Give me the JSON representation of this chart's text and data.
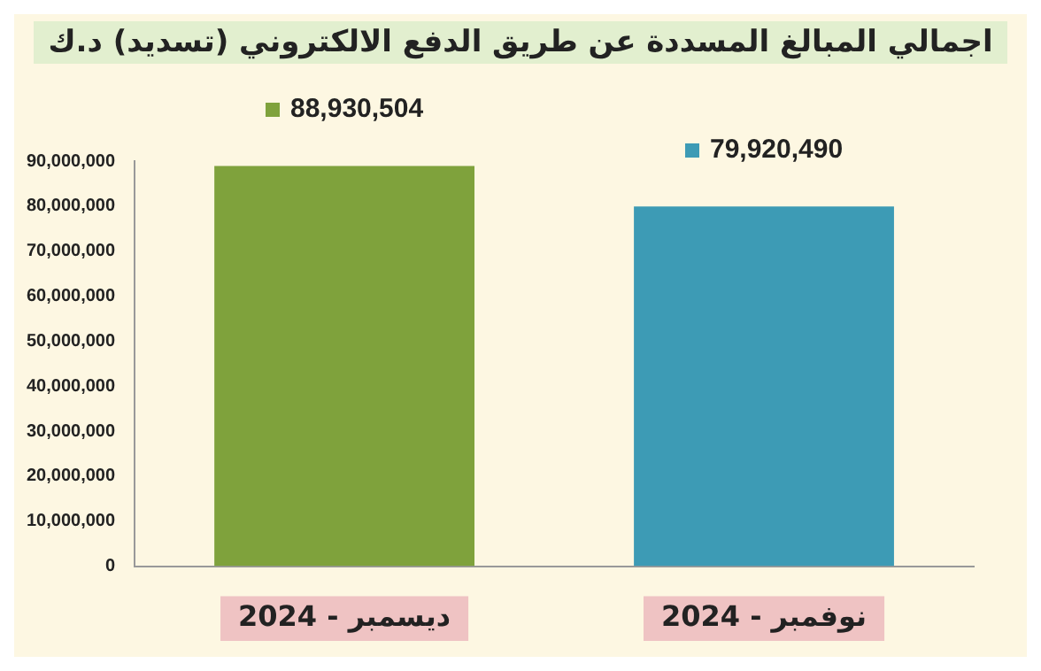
{
  "chart_data": {
    "type": "bar",
    "title": "اجمالي المبالغ المسددة عن طريق الدفع الالكتروني (تسديد) د.ك",
    "categories": [
      "ديسمبر - 2024",
      "نوفمبر - 2024"
    ],
    "values": [
      88930504,
      79920490
    ],
    "colors": [
      "#7fa23c",
      "#3d9bb5"
    ],
    "value_labels": [
      "88,930,504",
      "79,920,490"
    ],
    "ylim": [
      0,
      90000000
    ],
    "yticks": [
      0,
      {
        "value": 10000000,
        "label": "10,000,000"
      },
      {
        "value": 20000000,
        "label": "20,000,000"
      },
      {
        "value": 30000000,
        "label": "30,000,000"
      },
      {
        "value": 40000000,
        "label": "40,000,000"
      },
      {
        "value": 50000000,
        "label": "50,000,000"
      },
      {
        "value": 60000000,
        "label": "60,000,000"
      },
      {
        "value": 70000000,
        "label": "70,000,000"
      },
      {
        "value": 80000000,
        "label": "80,000,000"
      },
      {
        "value": 90000000,
        "label": "90,000,000"
      }
    ],
    "grid": false,
    "legend": false
  }
}
